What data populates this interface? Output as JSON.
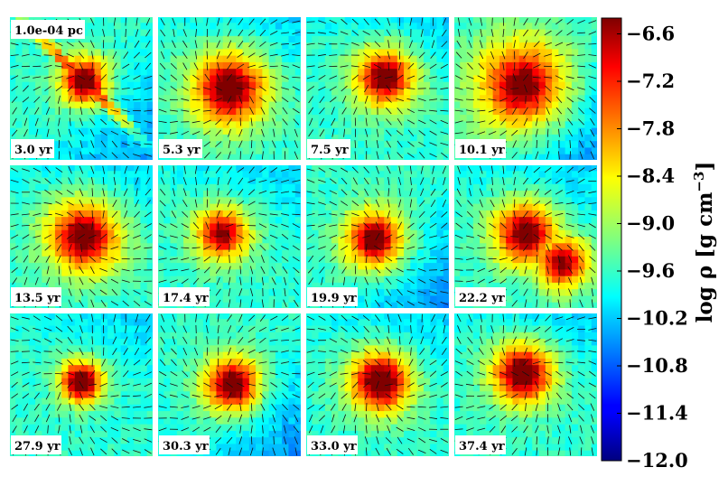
{
  "figure": {
    "scale_label": "1.0e-04 pc",
    "panels": [
      {
        "time": "3.0 yr",
        "peak": [
          0.52,
          0.45
        ],
        "spread": 0.1,
        "level": 0.88,
        "shape": "filament"
      },
      {
        "time": "5.3 yr",
        "peak": [
          0.5,
          0.5
        ],
        "spread": 0.16,
        "level": 0.84,
        "shape": "blob"
      },
      {
        "time": "7.5 yr",
        "peak": [
          0.55,
          0.42
        ],
        "spread": 0.13,
        "level": 0.8,
        "shape": "blob"
      },
      {
        "time": "10.1 yr",
        "peak": [
          0.48,
          0.48
        ],
        "spread": 0.2,
        "level": 0.74,
        "shape": "blob"
      },
      {
        "time": "13.5 yr",
        "peak": [
          0.52,
          0.5
        ],
        "spread": 0.16,
        "level": 0.78,
        "shape": "blob"
      },
      {
        "time": "17.4 yr",
        "peak": [
          0.45,
          0.48
        ],
        "spread": 0.12,
        "level": 0.7,
        "shape": "blob"
      },
      {
        "time": "19.9 yr",
        "peak": [
          0.48,
          0.52
        ],
        "spread": 0.13,
        "level": 0.78,
        "shape": "blob"
      },
      {
        "time": "22.2 yr",
        "peak": [
          0.5,
          0.48
        ],
        "spread": 0.14,
        "level": 0.8,
        "shape": "double"
      },
      {
        "time": "27.9 yr",
        "peak": [
          0.5,
          0.48
        ],
        "spread": 0.09,
        "level": 0.92,
        "shape": "blob"
      },
      {
        "time": "30.3 yr",
        "peak": [
          0.52,
          0.5
        ],
        "spread": 0.12,
        "level": 0.86,
        "shape": "blob"
      },
      {
        "time": "33.0 yr",
        "peak": [
          0.52,
          0.48
        ],
        "spread": 0.13,
        "level": 0.9,
        "shape": "blob"
      },
      {
        "time": "37.4 yr",
        "peak": [
          0.48,
          0.42
        ],
        "spread": 0.13,
        "level": 0.88,
        "shape": "blob"
      }
    ]
  },
  "colorbar": {
    "label": "log ρ [g cm",
    "label_exponent": "−3",
    "label_close": "]",
    "ticks": [
      "−6.6",
      "−7.2",
      "−7.8",
      "−8.4",
      "−9.0",
      "−9.6",
      "−10.2",
      "−10.8",
      "−11.4",
      "−12.0"
    ],
    "range": [
      -12.0,
      -6.4
    ],
    "colormap": "jet"
  }
}
